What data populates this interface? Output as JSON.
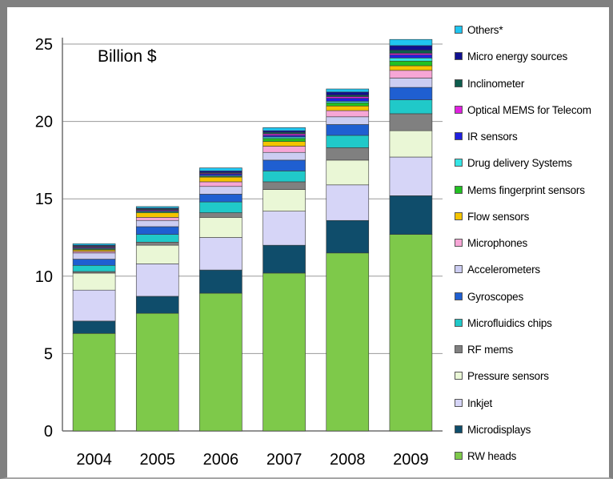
{
  "chart_data": {
    "type": "bar",
    "stacked": true,
    "title": "Billion $",
    "xlabel": "",
    "ylabel": "",
    "ylim": [
      0,
      25
    ],
    "yticks": [
      0,
      5,
      10,
      15,
      20,
      25
    ],
    "grid": true,
    "legend_position": "right",
    "categories": [
      "2004",
      "2005",
      "2006",
      "2007",
      "2008",
      "2009"
    ],
    "series": [
      {
        "name": "RW heads",
        "color": "#7ec94a",
        "values": [
          6.3,
          7.6,
          8.9,
          10.2,
          11.5,
          12.7
        ]
      },
      {
        "name": "Microdisplays",
        "color": "#0f4d6b",
        "values": [
          0.8,
          1.1,
          1.5,
          1.8,
          2.1,
          2.5
        ]
      },
      {
        "name": "Inkjet",
        "color": "#d6d5f7",
        "values": [
          2.0,
          2.1,
          2.1,
          2.2,
          2.3,
          2.5
        ]
      },
      {
        "name": "Pressure sensors",
        "color": "#eaf7d6",
        "values": [
          1.1,
          1.2,
          1.3,
          1.4,
          1.6,
          1.7
        ]
      },
      {
        "name": "RF mems",
        "color": "#808080",
        "values": [
          0.1,
          0.2,
          0.3,
          0.5,
          0.8,
          1.1
        ]
      },
      {
        "name": "Microfluidics chips",
        "color": "#20c9c9",
        "values": [
          0.4,
          0.5,
          0.7,
          0.7,
          0.8,
          0.9
        ]
      },
      {
        "name": "Gyroscopes",
        "color": "#1f5fd1",
        "values": [
          0.4,
          0.5,
          0.5,
          0.7,
          0.7,
          0.8
        ]
      },
      {
        "name": "Accelerometers",
        "color": "#cccdf2",
        "values": [
          0.4,
          0.4,
          0.5,
          0.5,
          0.5,
          0.6
        ]
      },
      {
        "name": "Microphones",
        "color": "#f7a6d6",
        "values": [
          0.1,
          0.2,
          0.3,
          0.4,
          0.4,
          0.5
        ]
      },
      {
        "name": "Flow sensors",
        "color": "#f5c400",
        "values": [
          0.1,
          0.3,
          0.3,
          0.3,
          0.3,
          0.3
        ]
      },
      {
        "name": "Mems fingerprint sensors",
        "color": "#22c122",
        "values": [
          0.05,
          0.05,
          0.05,
          0.2,
          0.2,
          0.3
        ]
      },
      {
        "name": "Drug delivery Systems",
        "color": "#35e5e5",
        "values": [
          0.05,
          0.05,
          0.05,
          0.1,
          0.1,
          0.2
        ]
      },
      {
        "name": "IR sensors",
        "color": "#2020e0",
        "values": [
          0.05,
          0.05,
          0.1,
          0.1,
          0.2,
          0.2
        ]
      },
      {
        "name": "Optical MEMS for Telecom",
        "color": "#e020e0",
        "values": [
          0.05,
          0.05,
          0.05,
          0.1,
          0.1,
          0.1
        ]
      },
      {
        "name": "Inclinometer",
        "color": "#0d5d4d",
        "values": [
          0.05,
          0.05,
          0.05,
          0.1,
          0.1,
          0.2
        ]
      },
      {
        "name": "Micro energy sources",
        "color": "#101090",
        "values": [
          0.05,
          0.05,
          0.1,
          0.1,
          0.2,
          0.3
        ]
      },
      {
        "name": "Others*",
        "color": "#20c5f0",
        "values": [
          0.1,
          0.1,
          0.2,
          0.2,
          0.2,
          0.4
        ]
      }
    ]
  }
}
